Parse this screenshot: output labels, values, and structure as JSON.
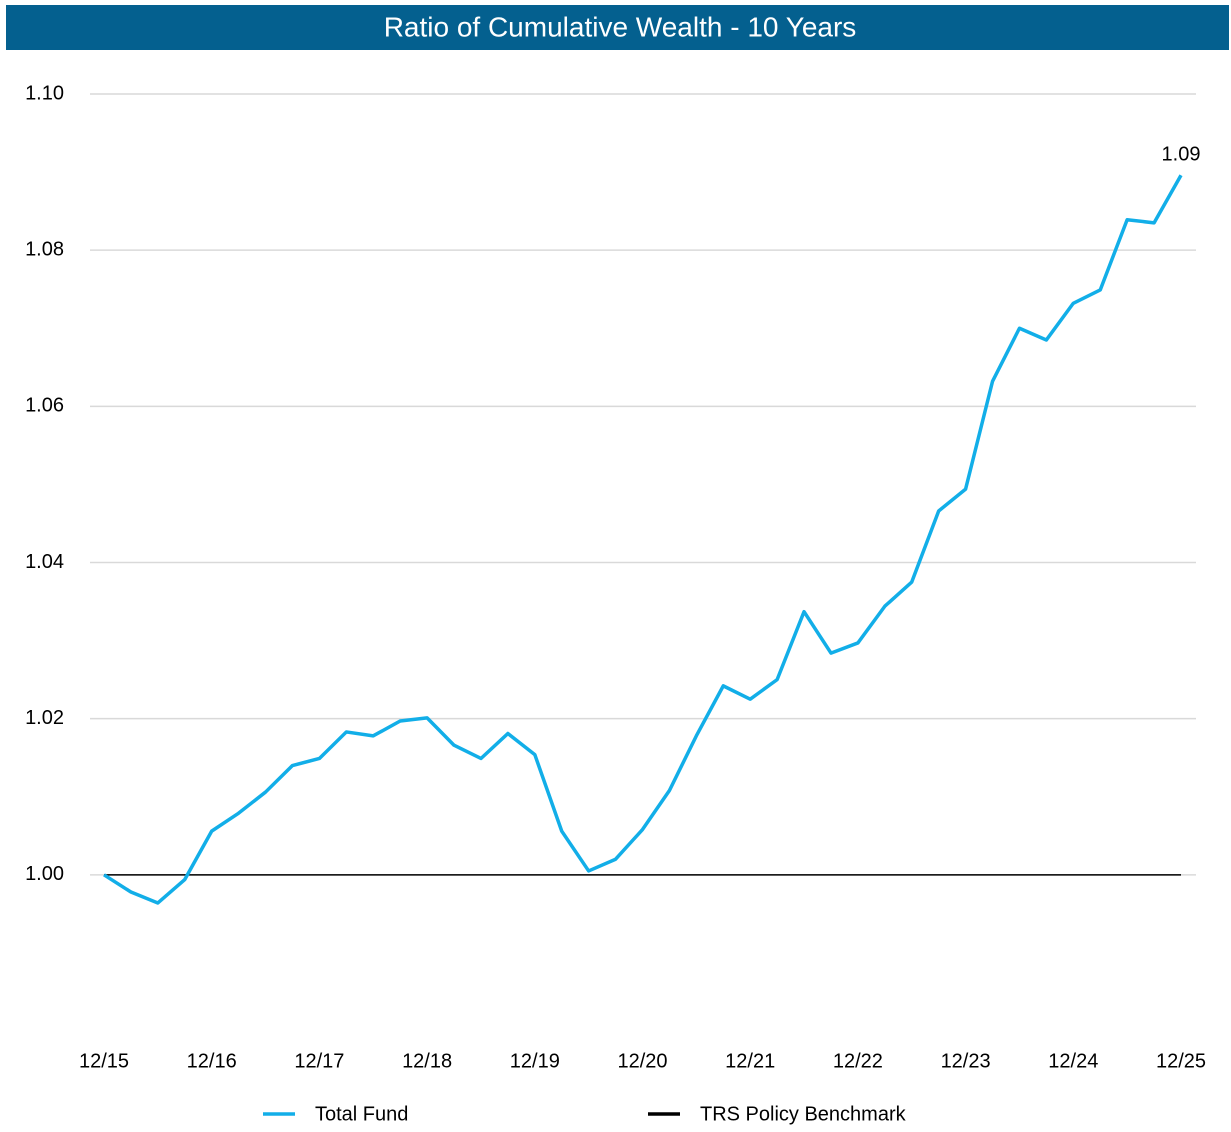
{
  "chart_data": {
    "type": "line",
    "title": "Ratio of Cumulative Wealth - 10 Years",
    "categories": [
      "12/15",
      null,
      null,
      null,
      "12/16",
      null,
      null,
      null,
      "12/17",
      null,
      null,
      null,
      "12/18",
      null,
      null,
      null,
      "12/19",
      null,
      null,
      null,
      "12/20",
      null,
      null,
      null,
      "12/21",
      null,
      null,
      null,
      "12/22",
      null,
      null,
      null,
      "12/23",
      null,
      null,
      null,
      "12/24",
      null,
      null,
      null,
      "12/25"
    ],
    "series": [
      {
        "name": "Total Fund",
        "color": "#12aee8",
        "values": [
          1.0,
          0.9978,
          0.9964,
          0.9994,
          1.0056,
          1.0079,
          1.0106,
          1.014,
          1.0149,
          1.0183,
          1.0178,
          1.0197,
          1.0201,
          1.0166,
          1.0149,
          1.0181,
          1.0154,
          1.0056,
          1.0005,
          1.002,
          1.0058,
          1.0108,
          1.0178,
          1.0242,
          1.0225,
          1.025,
          1.0337,
          1.0284,
          1.0297,
          1.0344,
          1.0375,
          1.0466,
          1.0494,
          1.0632,
          1.07,
          1.0685,
          1.0732,
          1.0749,
          1.0839,
          1.0835,
          1.0896
        ],
        "value_labels": [
          null,
          null,
          null,
          null,
          null,
          null,
          null,
          null,
          null,
          null,
          null,
          null,
          null,
          null,
          null,
          null,
          null,
          null,
          null,
          null,
          null,
          null,
          null,
          null,
          null,
          null,
          null,
          null,
          null,
          null,
          null,
          null,
          null,
          null,
          null,
          null,
          null,
          null,
          null,
          null,
          "1.09"
        ]
      },
      {
        "name": "TRS Policy Benchmark",
        "color": "#000000",
        "values": [
          1,
          1,
          1,
          1,
          1,
          1,
          1,
          1,
          1,
          1,
          1,
          1,
          1,
          1,
          1,
          1,
          1,
          1,
          1,
          1,
          1,
          1,
          1,
          1,
          1,
          1,
          1,
          1,
          1,
          1,
          1,
          1,
          1,
          1,
          1,
          1,
          1,
          1,
          1,
          1,
          1
        ]
      }
    ],
    "ylim": [
      0.98,
      1.1
    ],
    "yticks": [
      {
        "value": 1.0,
        "label": "1.00"
      },
      1.02,
      1.04,
      1.06,
      1.08,
      {
        "value": 1.1,
        "label": "1.10"
      }
    ],
    "grid": true,
    "legend": "bottom"
  }
}
